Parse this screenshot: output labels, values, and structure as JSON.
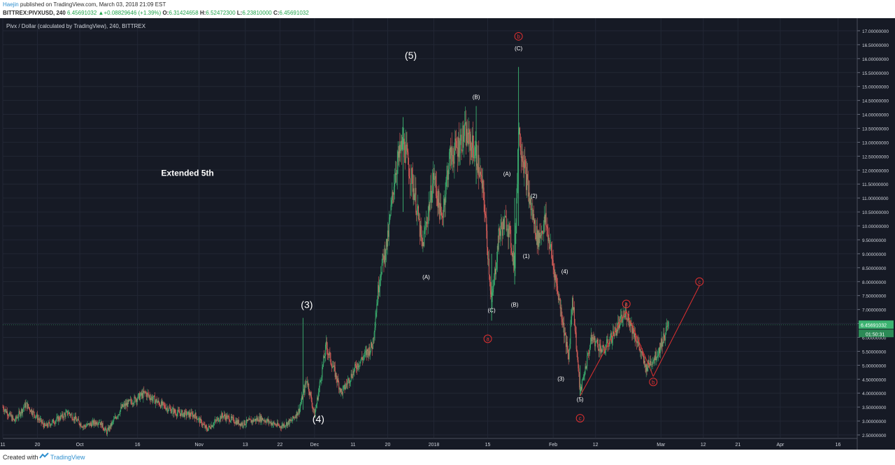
{
  "header": {
    "author": "Haejin",
    "published": " published on TradingView.com, March 03, 2018 21:09 EST",
    "symbol": "BITTREX:PIVXUSD, 240",
    "last": "6.45691032",
    "change": "+0.08829646 (+1.39%)",
    "o_label": "O:",
    "o": "6.31424658",
    "h_label": "H:",
    "h": "6.52472300",
    "l_label": "L:",
    "l": "6.23810000",
    "c_label": "C:",
    "c": "6.45691032"
  },
  "chart_title": "Pivx / Dollar (calculated by TradingView), 240, BITTREX",
  "footer": {
    "created": "Created with",
    "brand": "TradingView"
  },
  "colors": {
    "background": "#161a25",
    "grid": "#222735",
    "up": "#3cb371",
    "down": "#e0605a",
    "annotation": "#e03030",
    "label": "#ffffff",
    "price_badge": "#3cb371"
  },
  "chart_data": {
    "type": "candlestick",
    "x_axis": {
      "range": [
        "2017-09-11",
        "2018-04-21"
      ],
      "ticks": [
        {
          "date": "2017-09-11",
          "label": "11"
        },
        {
          "date": "2017-09-20",
          "label": "20"
        },
        {
          "date": "2017-10-01",
          "label": "Oct"
        },
        {
          "date": "2017-10-16",
          "label": "16"
        },
        {
          "date": "2017-11-01",
          "label": "Nov"
        },
        {
          "date": "2017-11-13",
          "label": "13"
        },
        {
          "date": "2017-11-22",
          "label": "22"
        },
        {
          "date": "2017-12-01",
          "label": "Dec"
        },
        {
          "date": "2017-12-11",
          "label": "11"
        },
        {
          "date": "2017-12-20",
          "label": "20"
        },
        {
          "date": "2018-01-01",
          "label": "2018"
        },
        {
          "date": "2018-01-15",
          "label": "15"
        },
        {
          "date": "2018-02-01",
          "label": "Feb"
        },
        {
          "date": "2018-02-12",
          "label": "12"
        },
        {
          "date": "2018-03-01",
          "label": "Mar"
        },
        {
          "date": "2018-03-12",
          "label": "12"
        },
        {
          "date": "2018-03-21",
          "label": "21"
        },
        {
          "date": "2018-04-01",
          "label": "Apr"
        },
        {
          "date": "2018-04-16",
          "label": "16"
        }
      ]
    },
    "y_axis": {
      "range": [
        2.4,
        17.25
      ],
      "ticks": [
        "2.50000000",
        "3.00000000",
        "3.50000000",
        "4.00000000",
        "4.50000000",
        "5.00000000",
        "5.50000000",
        "6.00000000",
        "6.50000000",
        "7.00000000",
        "7.50000000",
        "8.00000000",
        "8.50000000",
        "9.00000000",
        "9.50000000",
        "10.00000000",
        "10.50000000",
        "11.00000000",
        "11.50000000",
        "12.00000000",
        "12.50000000",
        "13.00000000",
        "13.50000000",
        "14.00000000",
        "14.50000000",
        "15.00000000",
        "15.50000000",
        "16.00000000",
        "16.50000000",
        "17.00000000"
      ],
      "last_price": {
        "value": 6.45691032,
        "label": "6.45691032"
      },
      "countdown": {
        "value": 6.2,
        "label": "01:50:31"
      }
    },
    "price_path": [
      [
        "2017-09-11",
        3.5
      ],
      [
        "2017-09-14",
        3.0
      ],
      [
        "2017-09-17",
        3.6
      ],
      [
        "2017-09-22",
        2.8
      ],
      [
        "2017-09-28",
        3.3
      ],
      [
        "2017-10-02",
        2.8
      ],
      [
        "2017-10-06",
        3.0
      ],
      [
        "2017-10-08",
        2.6
      ],
      [
        "2017-10-12",
        3.5
      ],
      [
        "2017-10-18",
        4.0
      ],
      [
        "2017-10-22",
        3.6
      ],
      [
        "2017-10-26",
        3.3
      ],
      [
        "2017-10-31",
        3.2
      ],
      [
        "2017-11-03",
        2.7
      ],
      [
        "2017-11-07",
        3.2
      ],
      [
        "2017-11-12",
        2.9
      ],
      [
        "2017-11-17",
        3.1
      ],
      [
        "2017-11-22",
        2.8
      ],
      [
        "2017-11-25",
        3.0
      ],
      [
        "2017-11-27",
        3.4
      ],
      [
        "2017-11-29",
        4.5
      ],
      [
        "2017-12-01",
        3.2
      ],
      [
        "2017-12-04",
        5.7
      ],
      [
        "2017-12-08",
        4.0
      ],
      [
        "2017-12-12",
        5.0
      ],
      [
        "2017-12-16",
        5.7
      ],
      [
        "2017-12-18",
        8.3
      ],
      [
        "2017-12-20",
        9.5
      ],
      [
        "2017-12-22",
        12.0
      ],
      [
        "2017-12-24",
        13.0
      ],
      [
        "2017-12-27",
        11.2
      ],
      [
        "2017-12-29",
        9.2
      ],
      [
        "2018-01-01",
        11.8
      ],
      [
        "2018-01-03",
        10.2
      ],
      [
        "2018-01-05",
        12.4
      ],
      [
        "2018-01-07",
        12.8
      ],
      [
        "2018-01-09",
        13.3
      ],
      [
        "2018-01-12",
        12.6
      ],
      [
        "2018-01-14",
        11.0
      ],
      [
        "2018-01-16",
        7.2
      ],
      [
        "2018-01-18",
        9.8
      ],
      [
        "2018-01-20",
        10.2
      ],
      [
        "2018-01-22",
        8.6
      ],
      [
        "2018-01-23",
        13.5
      ],
      [
        "2018-01-26",
        10.8
      ],
      [
        "2018-01-28",
        9.5
      ],
      [
        "2018-01-30",
        10.2
      ],
      [
        "2018-02-01",
        8.6
      ],
      [
        "2018-02-03",
        7.0
      ],
      [
        "2018-02-05",
        5.2
      ],
      [
        "2018-02-06",
        7.5
      ],
      [
        "2018-02-08",
        4.0
      ],
      [
        "2018-02-11",
        6.0
      ],
      [
        "2018-02-14",
        5.5
      ],
      [
        "2018-02-17",
        6.2
      ],
      [
        "2018-02-20",
        6.9
      ],
      [
        "2018-02-23",
        5.8
      ],
      [
        "2018-02-25",
        4.9
      ],
      [
        "2018-02-28",
        5.4
      ],
      [
        "2018-03-03",
        6.45
      ]
    ],
    "spikes": [
      {
        "date": "2017-11-28",
        "high": 6.7,
        "low": 3.4
      },
      {
        "date": "2017-12-22",
        "high": 5.2,
        "low": 5.2
      },
      {
        "date": "2017-12-24",
        "high": 13.9,
        "low": 10.5
      },
      {
        "date": "2018-01-12",
        "high": 14.3,
        "low": 11.5
      },
      {
        "date": "2018-01-16",
        "high": 9.0,
        "low": 6.6
      },
      {
        "date": "2018-01-23",
        "high": 15.7,
        "low": 10.0
      },
      {
        "date": "2018-01-22",
        "high": 11.0,
        "low": 7.9
      },
      {
        "date": "2018-02-08",
        "high": 5.0,
        "low": 3.9
      }
    ],
    "wave_labels": [
      {
        "text": "(3)",
        "date": "2017-11-29",
        "price": 7.05,
        "size": 14
      },
      {
        "text": "(4)",
        "date": "2017-12-02",
        "price": 2.95,
        "size": 14
      },
      {
        "text": "(5)",
        "date": "2017-12-26",
        "price": 16.0,
        "size": 14
      },
      {
        "text": "Extended 5th",
        "date": "2017-10-29",
        "price": 11.8,
        "size": 12,
        "bold": true
      },
      {
        "text": "(B)",
        "date": "2018-01-12",
        "price": 14.55,
        "size": 8
      },
      {
        "text": "(A)",
        "date": "2017-12-30",
        "price": 8.1,
        "size": 8
      },
      {
        "text": "(C)",
        "date": "2018-01-16",
        "price": 6.9,
        "size": 8
      },
      {
        "text": "(A)",
        "date": "2018-01-20",
        "price": 11.8,
        "size": 8
      },
      {
        "text": "(B)",
        "date": "2018-01-22",
        "price": 7.1,
        "size": 8
      },
      {
        "text": "(C)",
        "date": "2018-01-23",
        "price": 16.3,
        "size": 8
      },
      {
        "text": "(1)",
        "date": "2018-01-25",
        "price": 8.85,
        "size": 8
      },
      {
        "text": "(2)",
        "date": "2018-01-27",
        "price": 11.0,
        "size": 8
      },
      {
        "text": "(4)",
        "date": "2018-02-04",
        "price": 8.3,
        "size": 8
      },
      {
        "text": "(3)",
        "date": "2018-02-03",
        "price": 4.45,
        "size": 8
      },
      {
        "text": "(5)",
        "date": "2018-02-08",
        "price": 3.7,
        "size": 8
      }
    ],
    "circle_labels": [
      {
        "text": "b",
        "date": "2018-01-23",
        "price": 16.8
      },
      {
        "text": "a",
        "date": "2018-01-15",
        "price": 5.95
      },
      {
        "text": "c",
        "date": "2018-02-08",
        "price": 3.1
      },
      {
        "text": "a",
        "date": "2018-02-20",
        "price": 7.2
      },
      {
        "text": "b",
        "date": "2018-02-27",
        "price": 4.4
      },
      {
        "text": "c",
        "date": "2018-03-11",
        "price": 8.0
      }
    ],
    "projection_lines": [
      [
        [
          "2018-02-08",
          3.9
        ],
        [
          "2018-02-20",
          6.95
        ]
      ],
      [
        [
          "2018-02-20",
          6.95
        ],
        [
          "2018-02-27",
          4.6
        ]
      ],
      [
        [
          "2018-02-27",
          4.6
        ],
        [
          "2018-03-11",
          7.85
        ]
      ]
    ]
  }
}
